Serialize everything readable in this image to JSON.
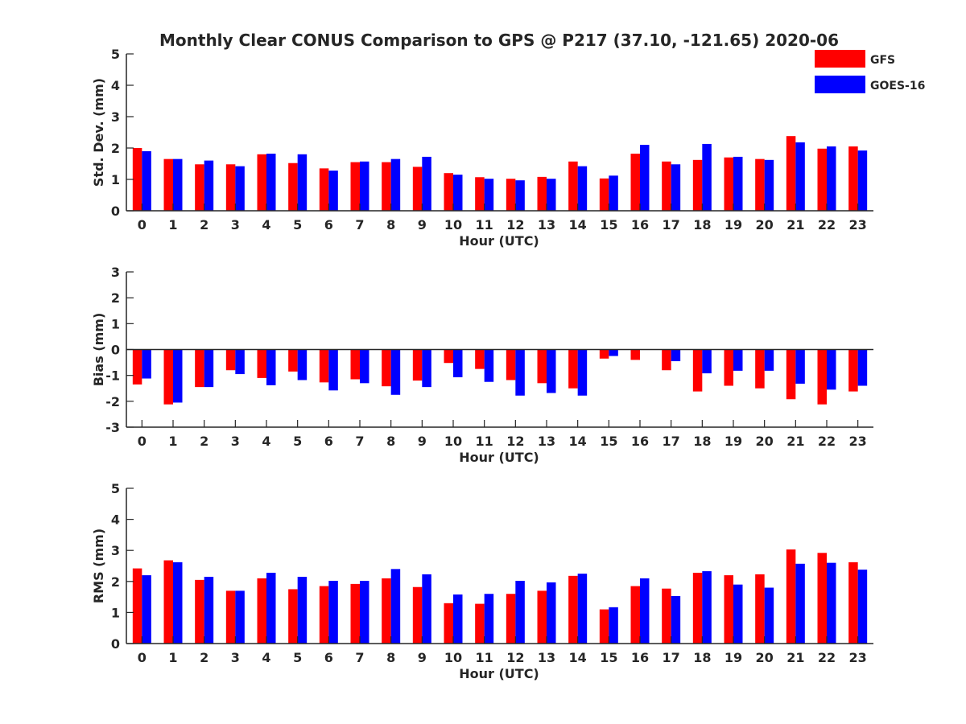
{
  "chart_data": {
    "title": "Monthly Clear CONUS Comparison to GPS @ P217 (37.10, -121.65) 2020-06",
    "legend": [
      {
        "name": "GFS",
        "color": "#ff0000"
      },
      {
        "name": "GOES-16",
        "color": "#0000ff"
      }
    ],
    "hours": [
      "0",
      "1",
      "2",
      "3",
      "4",
      "5",
      "6",
      "7",
      "8",
      "9",
      "10",
      "11",
      "12",
      "13",
      "14",
      "15",
      "16",
      "17",
      "18",
      "19",
      "20",
      "21",
      "22",
      "23"
    ],
    "panels": [
      {
        "id": "std",
        "type": "bar",
        "ylabel": "Std. Dev. (mm)",
        "xlabel": "Hour (UTC)",
        "ylim": [
          0,
          5
        ],
        "yticks": [
          "0",
          "1",
          "2",
          "3",
          "4",
          "5"
        ],
        "series": [
          {
            "name": "GFS",
            "values": [
              2.0,
              1.65,
              1.48,
              1.48,
              1.8,
              1.52,
              1.35,
              1.55,
              1.55,
              1.4,
              1.2,
              1.07,
              1.02,
              1.08,
              1.57,
              1.03,
              1.82,
              1.57,
              1.62,
              1.7,
              1.65,
              2.38,
              1.98,
              2.05
            ]
          },
          {
            "name": "GOES-16",
            "values": [
              1.9,
              1.65,
              1.6,
              1.42,
              1.82,
              1.8,
              1.28,
              1.57,
              1.65,
              1.72,
              1.15,
              1.02,
              0.97,
              1.02,
              1.42,
              1.12,
              2.1,
              1.48,
              2.13,
              1.72,
              1.62,
              2.18,
              2.05,
              1.92
            ]
          }
        ]
      },
      {
        "id": "bias",
        "type": "bar",
        "ylabel": "Bias (mm)",
        "xlabel": "Hour (UTC)",
        "ylim": [
          -3,
          3
        ],
        "yticks": [
          "-3",
          "-2",
          "-1",
          "0",
          "1",
          "2",
          "3"
        ],
        "series": [
          {
            "name": "GFS",
            "values": [
              -1.35,
              -2.12,
              -1.45,
              -0.8,
              -1.1,
              -0.85,
              -1.27,
              -1.15,
              -1.42,
              -1.2,
              -0.52,
              -0.75,
              -1.18,
              -1.3,
              -1.5,
              -0.35,
              -0.4,
              -0.8,
              -1.62,
              -1.4,
              -1.5,
              -1.92,
              -2.12,
              -1.62
            ]
          },
          {
            "name": "GOES-16",
            "values": [
              -1.12,
              -2.05,
              -1.45,
              -0.95,
              -1.38,
              -1.18,
              -1.58,
              -1.3,
              -1.75,
              -1.45,
              -1.07,
              -1.25,
              -1.78,
              -1.68,
              -1.78,
              -0.25,
              0,
              -0.45,
              -0.92,
              -0.82,
              -0.82,
              -1.32,
              -1.55,
              -1.4
            ]
          }
        ]
      },
      {
        "id": "rms",
        "type": "bar",
        "ylabel": "RMS (mm)",
        "xlabel": "Hour (UTC)",
        "ylim": [
          0,
          5
        ],
        "yticks": [
          "0",
          "1",
          "2",
          "3",
          "4",
          "5"
        ],
        "series": [
          {
            "name": "GFS",
            "values": [
              2.42,
              2.68,
              2.05,
              1.7,
              2.1,
              1.75,
              1.85,
              1.92,
              2.1,
              1.82,
              1.3,
              1.28,
              1.6,
              1.7,
              2.18,
              1.1,
              1.85,
              1.77,
              2.28,
              2.2,
              2.23,
              3.03,
              2.92,
              2.62
            ]
          },
          {
            "name": "GOES-16",
            "values": [
              2.2,
              2.62,
              2.15,
              1.7,
              2.28,
              2.15,
              2.02,
              2.02,
              2.4,
              2.23,
              1.58,
              1.6,
              2.02,
              1.97,
              2.25,
              1.17,
              2.1,
              1.53,
              2.33,
              1.9,
              1.8,
              2.57,
              2.6,
              2.38
            ]
          }
        ]
      }
    ]
  }
}
